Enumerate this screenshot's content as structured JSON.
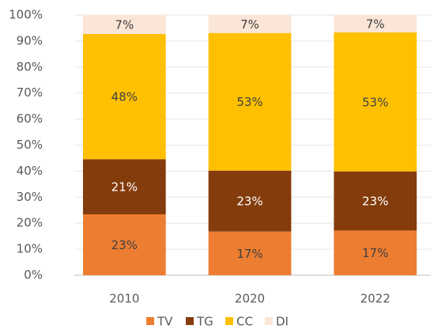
{
  "chart_data": {
    "type": "stacked_bar_100",
    "categories": [
      "2010",
      "2020",
      "2022"
    ],
    "series": [
      {
        "name": "TV",
        "color": "#ed7d31",
        "values": [
          23.4,
          16.8,
          17.2
        ],
        "value_labels": [
          "23%",
          "17%",
          "17%"
        ]
      },
      {
        "name": "TG",
        "color": "#843c0c",
        "values": [
          21.2,
          23.4,
          22.7
        ],
        "value_labels": [
          "21%",
          "23%",
          "23%"
        ]
      },
      {
        "name": "CC",
        "color": "#ffc000",
        "values": [
          48.1,
          52.9,
          53.4
        ],
        "value_labels": [
          "48%",
          "53%",
          "53%"
        ]
      },
      {
        "name": "DI",
        "color": "#fbe5d6",
        "values": [
          7.3,
          6.9,
          6.7
        ],
        "value_labels": [
          "7%",
          "7%",
          "7%"
        ]
      }
    ],
    "ylim": [
      0,
      100
    ],
    "yticks": [
      {
        "value": 0,
        "label": "0%"
      },
      {
        "value": 10,
        "label": "10%"
      },
      {
        "value": 20,
        "label": "20%"
      },
      {
        "value": 30,
        "label": "30%"
      },
      {
        "value": 40,
        "label": "40%"
      },
      {
        "value": 50,
        "label": "50%"
      },
      {
        "value": 60,
        "label": "60%"
      },
      {
        "value": 70,
        "label": "70%"
      },
      {
        "value": 80,
        "label": "80%"
      },
      {
        "value": 90,
        "label": "90%"
      },
      {
        "value": 100,
        "label": "100%"
      }
    ],
    "grid": true,
    "legend": "bottom"
  }
}
